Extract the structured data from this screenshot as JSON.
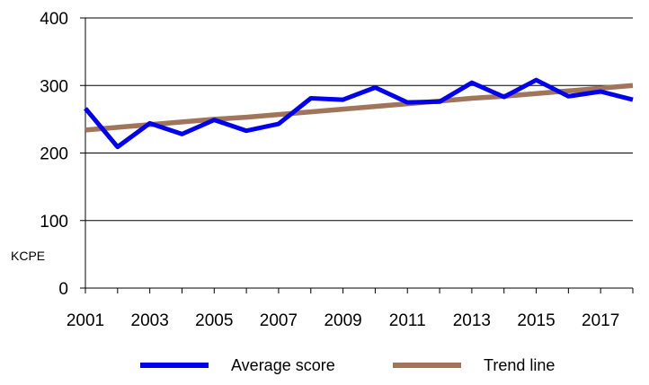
{
  "chart_data": {
    "type": "line",
    "title": "",
    "xlabel": "",
    "ylabel": "KCPE",
    "x": [
      2001,
      2002,
      2003,
      2004,
      2005,
      2006,
      2007,
      2008,
      2009,
      2010,
      2011,
      2012,
      2013,
      2014,
      2015,
      2016,
      2017,
      2018
    ],
    "x_tick_labels": [
      "2001",
      "2003",
      "2005",
      "2007",
      "2009",
      "2011",
      "2013",
      "2015",
      "2017"
    ],
    "xlim": [
      2001,
      2018
    ],
    "ylim": [
      0,
      400
    ],
    "y_ticks": [
      0,
      100,
      200,
      300,
      400
    ],
    "grid": "horizontal",
    "legend_position": "bottom",
    "series": [
      {
        "name": "Average score",
        "color": "#0000ee",
        "values": [
          266,
          209,
          244,
          228,
          249,
          233,
          243,
          281,
          279,
          297,
          275,
          276,
          304,
          283,
          308,
          284,
          291,
          279
        ]
      },
      {
        "name": "Trend line",
        "color": "#a0755a",
        "values": [
          234,
          238,
          242,
          246,
          250,
          253,
          257,
          261,
          265,
          269,
          273,
          277,
          281,
          284,
          288,
          292,
          296,
          300
        ]
      }
    ]
  }
}
